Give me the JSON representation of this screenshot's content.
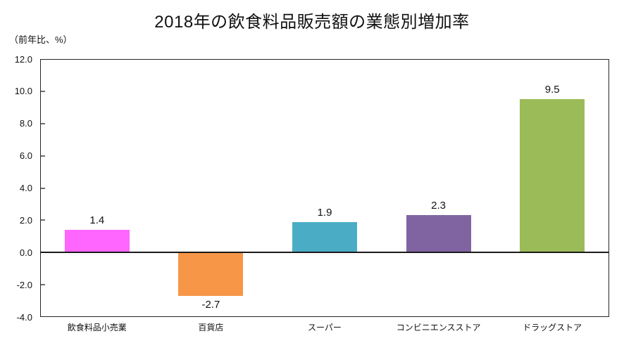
{
  "chart_data": {
    "type": "bar",
    "title": "2018年の飲食料品販売額の業態別増加率",
    "unit_label": "（前年比、%）",
    "categories": [
      "飲食料品小売業",
      "百貨店",
      "スーパー",
      "コンビニエンスストア",
      "ドラッグストア"
    ],
    "values": [
      1.4,
      -2.7,
      1.9,
      2.3,
      9.5
    ],
    "value_labels": [
      "1.4",
      "-2.7",
      "1.9",
      "2.3",
      "9.5"
    ],
    "bar_colors": [
      "#FF66FF",
      "#F79646",
      "#4BACC6",
      "#8064A2",
      "#9BBB59"
    ],
    "ylim": [
      -4.0,
      12.0
    ],
    "yticks": [
      "12.0",
      "10.0",
      "8.0",
      "6.0",
      "4.0",
      "2.0",
      "0.0",
      "-2.0",
      "-4.0"
    ],
    "xlabel": "",
    "ylabel": "",
    "grid": false,
    "legend": "none",
    "axis_color": "#262626",
    "zero_line_color": "#1a1a1a"
  }
}
